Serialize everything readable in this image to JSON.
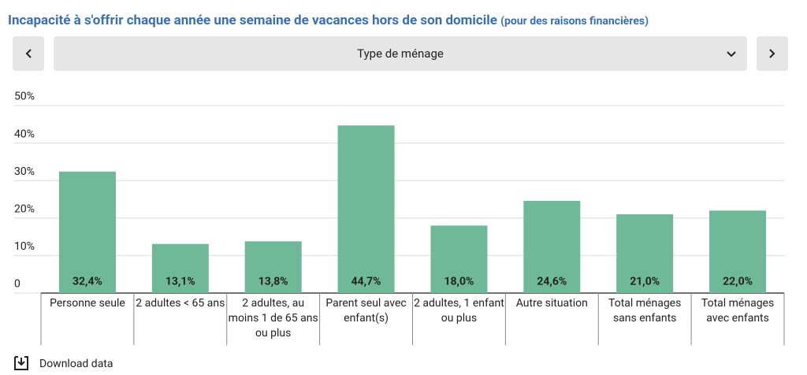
{
  "chart_data": {
    "type": "bar",
    "title": "Incapacité à s'offrir chaque année une semaine de vacances hors de son domicile",
    "subtitle": "(pour des raisons financières)",
    "categories": [
      "Personne seule",
      "2 adultes < 65 ans",
      "2 adultes, au moins 1 de 65 ans ou plus",
      "Parent seul avec enfant(s)",
      "2 adultes, 1 enfant ou plus",
      "Autre situation",
      "Total ménages sans enfants",
      "Total ménages avec enfants"
    ],
    "values": [
      32.4,
      13.1,
      13.8,
      44.7,
      18.0,
      24.6,
      21.0,
      22.0
    ],
    "value_labels": [
      "32,4%",
      "13,1%",
      "13,8%",
      "44,7%",
      "18,0%",
      "24,6%",
      "21,0%",
      "22,0%"
    ],
    "color": "#6fb898",
    "ylim": [
      0,
      50
    ],
    "yticks": [
      0,
      {
        "value": 10,
        "label": "10%"
      },
      {
        "value": 20,
        "label": "20%"
      },
      {
        "value": 30,
        "label": "30%"
      },
      {
        "value": 40,
        "label": "40%"
      },
      {
        "value": 50,
        "label": "50%"
      }
    ],
    "grid": true
  },
  "controls": {
    "dropdown": "Type de ménage"
  },
  "download": "Download data"
}
